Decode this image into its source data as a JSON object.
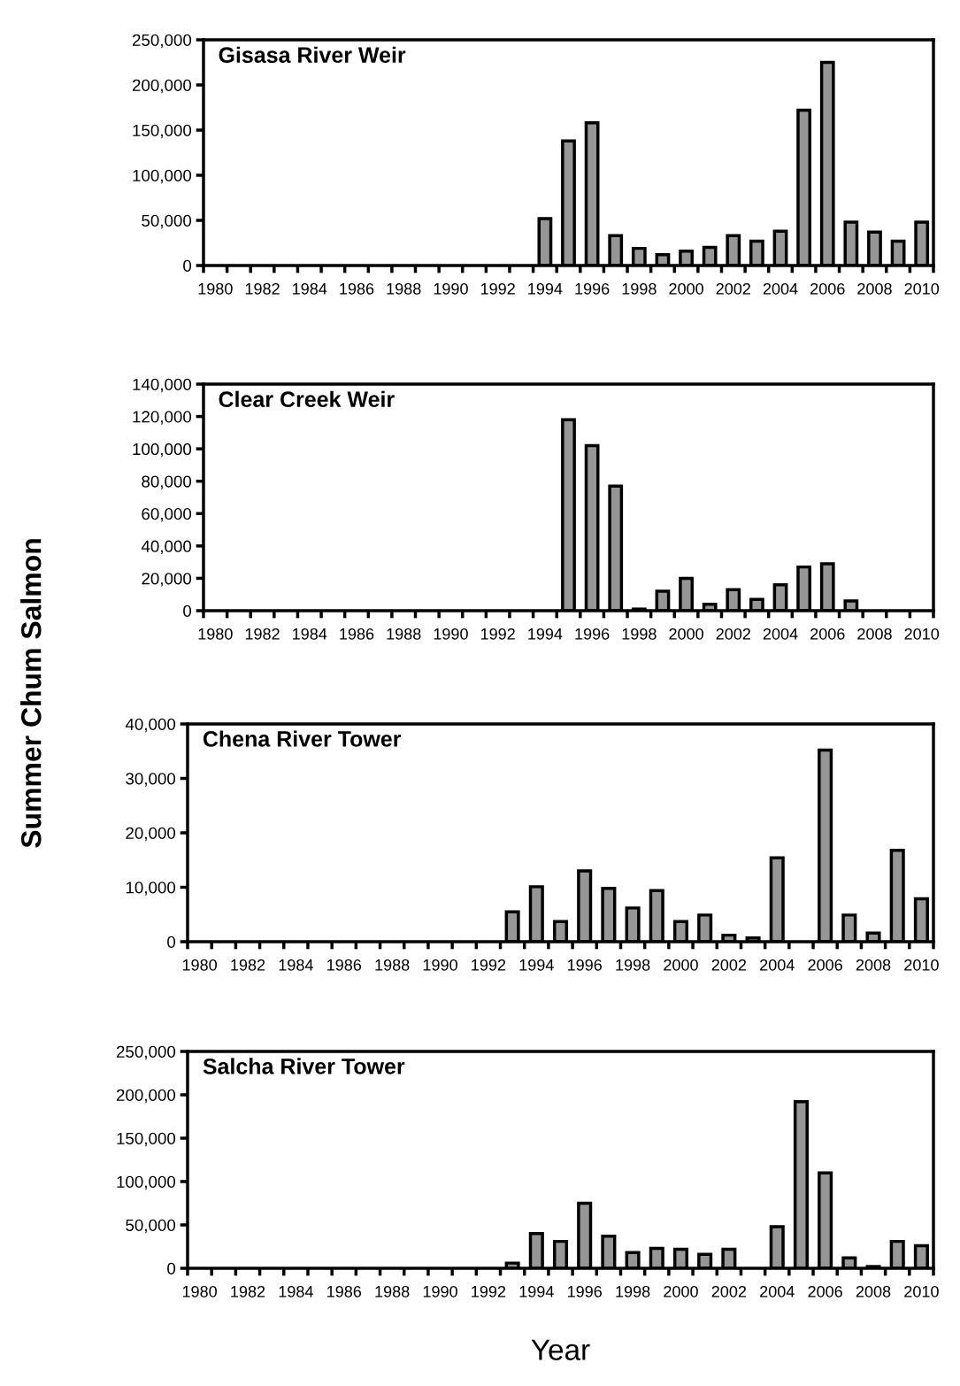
{
  "chart_data": [
    {
      "type": "bar",
      "title": "Gisasa River Weir",
      "color": "#969696",
      "categories": [
        "1980",
        null,
        "1982",
        null,
        "1984",
        null,
        "1986",
        null,
        "1988",
        null,
        "1990",
        null,
        "1992",
        null,
        "1994",
        null,
        "1996",
        null,
        "1998",
        null,
        "2000",
        null,
        "2002",
        null,
        "2004",
        null,
        "2006",
        null,
        "2008",
        null,
        "2010"
      ],
      "values": [
        null,
        null,
        null,
        null,
        null,
        null,
        null,
        null,
        null,
        null,
        null,
        null,
        null,
        null,
        52000,
        138000,
        158000,
        33000,
        19000,
        12000,
        16000,
        20000,
        33000,
        27000,
        38000,
        172000,
        225000,
        48000,
        37000,
        27000,
        48000
      ],
      "ylim": [
        0,
        250000
      ],
      "yticks": [
        {
          "value": 0,
          "label": "0"
        },
        {
          "value": 50000,
          "label": "50,000"
        },
        {
          "value": 100000,
          "label": "100,000"
        },
        {
          "value": 150000,
          "label": "150,000"
        },
        {
          "value": 200000,
          "label": "200,000"
        },
        {
          "value": 250000,
          "label": "250,000"
        }
      ]
    },
    {
      "type": "bar",
      "title": "Clear Creek Weir",
      "color": "#969696",
      "categories": [
        "1980",
        null,
        "1982",
        null,
        "1984",
        null,
        "1986",
        null,
        "1988",
        null,
        "1990",
        null,
        "1992",
        null,
        "1994",
        null,
        "1996",
        null,
        "1998",
        null,
        "2000",
        null,
        "2002",
        null,
        "2004",
        null,
        "2006",
        null,
        "2008",
        null,
        "2010"
      ],
      "values": [
        null,
        null,
        null,
        null,
        null,
        null,
        null,
        null,
        null,
        null,
        null,
        null,
        null,
        null,
        null,
        118000,
        102000,
        77000,
        1000,
        12000,
        20000,
        4000,
        13000,
        7000,
        16000,
        27000,
        29000,
        6000,
        null,
        null,
        null
      ],
      "ylim": [
        0,
        140000
      ],
      "yticks": [
        {
          "value": 0,
          "label": "0"
        },
        {
          "value": 20000,
          "label": "20,000"
        },
        {
          "value": 40000,
          "label": "40,000"
        },
        {
          "value": 60000,
          "label": "60,000"
        },
        {
          "value": 80000,
          "label": "80,000"
        },
        {
          "value": 100000,
          "label": "100,000"
        },
        {
          "value": 120000,
          "label": "120,000"
        },
        {
          "value": 140000,
          "label": "140,000"
        }
      ]
    },
    {
      "type": "bar",
      "title": "Chena River Tower",
      "ylabel": "Summer Chum Salmon",
      "color": "#969696",
      "categories": [
        "1980",
        null,
        "1982",
        null,
        "1984",
        null,
        "1986",
        null,
        "1988",
        null,
        "1990",
        null,
        "1992",
        null,
        "1994",
        null,
        "1996",
        null,
        "1998",
        null,
        "2000",
        null,
        "2002",
        null,
        "2004",
        null,
        "2006",
        null,
        "2008",
        null,
        "2010"
      ],
      "values": [
        null,
        null,
        null,
        null,
        null,
        null,
        null,
        null,
        null,
        null,
        null,
        null,
        null,
        5500,
        10100,
        3700,
        13000,
        9800,
        6200,
        9400,
        3700,
        4900,
        1200,
        700,
        15400,
        null,
        35200,
        4900,
        1600,
        16800,
        7900
      ],
      "ylim": [
        0,
        40000
      ],
      "yticks": [
        {
          "value": 0,
          "label": "0"
        },
        {
          "value": 10000,
          "label": "10,000"
        },
        {
          "value": 20000,
          "label": "20,000"
        },
        {
          "value": 30000,
          "label": "30,000"
        },
        {
          "value": 40000,
          "label": "40,000"
        }
      ]
    },
    {
      "type": "bar",
      "title": "Salcha River Tower",
      "xlabel": "Year",
      "color": "#969696",
      "categories": [
        "1980",
        null,
        "1982",
        null,
        "1984",
        null,
        "1986",
        null,
        "1988",
        null,
        "1990",
        null,
        "1992",
        null,
        "1994",
        null,
        "1996",
        null,
        "1998",
        null,
        "2000",
        null,
        "2002",
        null,
        "2004",
        null,
        "2006",
        null,
        "2008",
        null,
        "2010"
      ],
      "values": [
        null,
        null,
        null,
        null,
        null,
        null,
        null,
        null,
        null,
        null,
        null,
        null,
        null,
        6000,
        40000,
        31000,
        75000,
        37000,
        18000,
        23000,
        22000,
        16000,
        22000,
        null,
        48000,
        192000,
        110000,
        12000,
        2000,
        31000,
        26000
      ],
      "ylim": [
        0,
        250000
      ],
      "yticks": [
        {
          "value": 0,
          "label": "0"
        },
        {
          "value": 50000,
          "label": "50,000"
        },
        {
          "value": 100000,
          "label": "100,000"
        },
        {
          "value": 150000,
          "label": "150,000"
        },
        {
          "value": 200000,
          "label": "200,000"
        },
        {
          "value": 250000,
          "label": "250,000"
        }
      ]
    }
  ]
}
